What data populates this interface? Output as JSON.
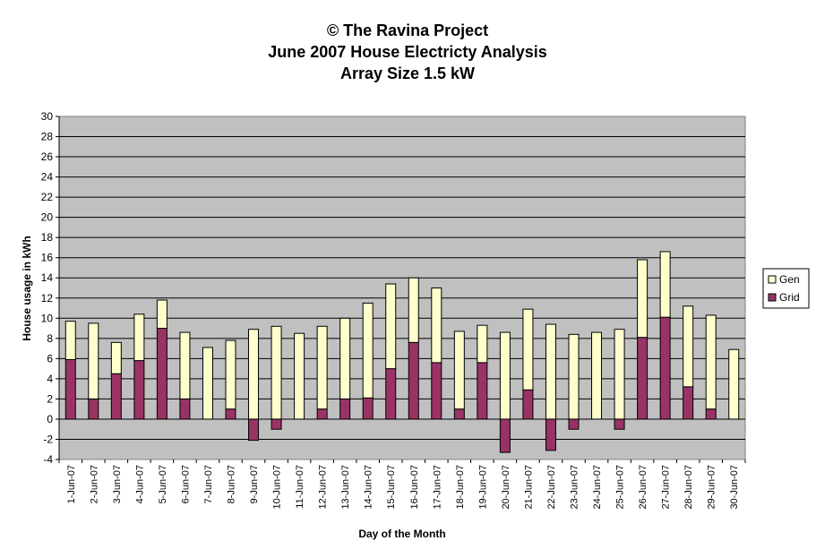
{
  "chart_data": {
    "type": "bar",
    "stacked": true,
    "title": [
      "© The Ravina Project",
      "June 2007 House Electricty Analysis",
      "Array Size 1.5 kW"
    ],
    "xlabel": "Day of the Month",
    "ylabel": "House usage in kWh",
    "ylim": [
      -4,
      30
    ],
    "yticks": [
      -4,
      -2,
      0,
      2,
      4,
      6,
      8,
      10,
      12,
      14,
      16,
      18,
      20,
      22,
      24,
      26,
      28,
      30
    ],
    "grid": true,
    "legend_position": "right",
    "categories": [
      "1-Jun-07",
      "2-Jun-07",
      "3-Jun-07",
      "4-Jun-07",
      "5-Jun-07",
      "6-Jun-07",
      "7-Jun-07",
      "8-Jun-07",
      "9-Jun-07",
      "10-Jun-07",
      "11-Jun-07",
      "12-Jun-07",
      "13-Jun-07",
      "14-Jun-07",
      "15-Jun-07",
      "16-Jun-07",
      "17-Jun-07",
      "18-Jun-07",
      "19-Jun-07",
      "20-Jun-07",
      "21-Jun-07",
      "22-Jun-07",
      "23-Jun-07",
      "24-Jun-07",
      "25-Jun-07",
      "26-Jun-07",
      "27-Jun-07",
      "28-Jun-07",
      "29-Jun-07",
      "30-Jun-07"
    ],
    "series": [
      {
        "name": "Grid",
        "color": "#993366",
        "values": [
          5.9,
          2.0,
          4.5,
          5.8,
          9.0,
          2.0,
          0.0,
          1.0,
          -2.1,
          -1.0,
          0.0,
          1.0,
          2.0,
          2.1,
          5.0,
          7.6,
          5.6,
          1.0,
          5.6,
          -3.3,
          2.9,
          -3.1,
          -1.0,
          0.0,
          -1.0,
          8.1,
          10.1,
          3.2,
          1.0,
          0.0
        ]
      },
      {
        "name": "Gen",
        "color": "#ffffcc",
        "values": [
          3.8,
          7.5,
          3.1,
          4.6,
          2.8,
          6.6,
          7.1,
          6.8,
          8.9,
          9.2,
          8.5,
          8.2,
          8.0,
          9.4,
          8.4,
          6.4,
          7.4,
          7.7,
          3.7,
          8.6,
          8.0,
          9.4,
          8.4,
          8.6,
          8.9,
          7.7,
          6.5,
          8.0,
          9.3,
          6.9
        ]
      }
    ]
  }
}
